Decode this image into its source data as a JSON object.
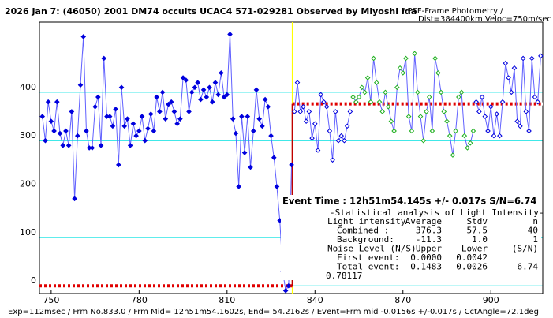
{
  "chart_data": {
    "type": "line",
    "title": "2026 Jan 7: (46050) 2001 DM74 occults UCAC4 571-029281 Observed by Miyoshi Ida",
    "subtitle": "/ PSF-Frame Photometry /",
    "subtitle2": "Dist=384400km Veloc=750m/sec",
    "footer": "Exp=112msec / Frm No.833.0 / Frm Mid= 12h51m54.1602s,  End= 54.2162s / Event=Frm mid -0.0156s +/-0.017s / CctAngle=72.1deg",
    "xlim": [
      746,
      917.7
    ],
    "ylim": [
      -16,
      545
    ],
    "xticks": [
      750,
      780,
      810,
      840,
      870,
      900
    ],
    "yticks": [
      0,
      100,
      200,
      300,
      400
    ],
    "grid": true,
    "grid_color": "#00e0e0",
    "line_color": "#6060ff",
    "series": [
      {
        "color": "#0000dd",
        "marker_fill": true,
        "x": [
          747,
          748,
          749,
          750,
          751,
          752,
          753,
          754,
          755,
          756,
          757,
          758,
          759,
          760,
          761,
          762,
          763,
          764,
          765,
          766,
          767,
          768,
          769,
          770,
          771,
          772,
          773,
          774,
          775,
          776,
          777,
          778,
          779,
          780,
          781,
          782,
          783,
          784,
          785,
          786,
          787,
          788,
          789,
          790,
          791,
          792,
          793,
          794,
          795,
          796,
          797,
          798,
          799,
          800,
          801,
          802,
          803,
          804,
          805,
          806,
          807,
          808,
          809,
          810,
          811,
          812,
          813,
          814,
          815,
          816,
          817,
          818,
          819,
          820,
          821,
          822,
          823,
          824,
          825,
          826,
          827,
          828,
          829,
          830,
          831,
          832
        ],
        "values": [
          350,
          300,
          380,
          340,
          320,
          380,
          315,
          290,
          320,
          290,
          360,
          180,
          310,
          415,
          515,
          320,
          285,
          285,
          370,
          390,
          290,
          470,
          350,
          350,
          330,
          365,
          250,
          410,
          330,
          345,
          290,
          335,
          310,
          320,
          350,
          300,
          325,
          355,
          320,
          390,
          360,
          400,
          345,
          375,
          380,
          360,
          335,
          345,
          430,
          425,
          360,
          400,
          410,
          420,
          385,
          405,
          390,
          410,
          380,
          420,
          395,
          440,
          390,
          395,
          520,
          345,
          315,
          205,
          350,
          275,
          350,
          245,
          320,
          405,
          345,
          330,
          385,
          370,
          310,
          265,
          205,
          135,
          30,
          -10,
          0,
          250
        ]
      },
      {
        "color": "#0000dd",
        "marker_fill": false,
        "x": [
          833,
          834,
          835,
          836,
          837,
          838,
          839,
          840,
          841,
          842,
          843,
          844,
          845,
          846,
          847,
          848,
          849,
          850,
          851,
          852
        ],
        "values": [
          360,
          420,
          360,
          370,
          340,
          360,
          305,
          335,
          280,
          395,
          380,
          370,
          320,
          260,
          360,
          300,
          310,
          300,
          330,
          360
        ]
      },
      {
        "color": "#20b020",
        "marker_fill": false,
        "x": [
          853,
          854,
          855,
          856,
          857,
          858,
          859,
          860,
          861,
          862,
          863,
          864,
          865,
          866,
          867,
          868,
          869,
          870,
          871,
          872,
          873,
          874,
          875,
          876,
          877,
          878,
          879,
          880,
          881,
          882,
          883,
          884,
          885,
          886,
          887,
          888,
          889,
          890,
          891,
          892,
          893,
          894
        ],
        "values": [
          390,
          380,
          390,
          410,
          400,
          430,
          380,
          470,
          420,
          380,
          360,
          400,
          370,
          340,
          320,
          410,
          450,
          440,
          470,
          350,
          320,
          480,
          400,
          350,
          300,
          360,
          390,
          320,
          470,
          440,
          400,
          360,
          340,
          310,
          270,
          320,
          390,
          400,
          310,
          285,
          295,
          320
        ]
      },
      {
        "color": "#0000dd",
        "marker_fill": false,
        "x": [
          895,
          896,
          897,
          898,
          899,
          900,
          901,
          902,
          903,
          904,
          905,
          906,
          907,
          908,
          909,
          910,
          911,
          912,
          913,
          914,
          915,
          916,
          917
        ],
        "values": [
          380,
          360,
          390,
          350,
          320,
          370,
          310,
          355,
          310,
          380,
          460,
          430,
          400,
          450,
          340,
          330,
          470,
          360,
          320,
          470,
          390,
          380,
          475
        ]
      }
    ],
    "event_x": 832.3,
    "step": {
      "x": 832.3,
      "levels": [
        0,
        376
      ]
    },
    "event_label": "Event Time : 12h51m54.145s  +/- 0.017s  S/N=6.74",
    "stats": {
      "title": "-Statistical analysis of Light Intensity-",
      "rows": [
        [
          "Light intensity",
          "Average",
          "Stdv",
          "n"
        ],
        [
          "Combined   :",
          "376.3",
          "57.5",
          "40"
        ],
        [
          "Background:",
          "-11.3",
          "1.0",
          "1"
        ],
        [
          "Noise Level (N/S)",
          "Upper",
          "Lower",
          "(S/N)"
        ],
        [
          "First event:",
          "0.0000",
          "0.0042"
        ],
        [
          "Total event:",
          "0.1483",
          "0.0026",
          "6.74"
        ]
      ],
      "extra": "0.78117"
    }
  }
}
